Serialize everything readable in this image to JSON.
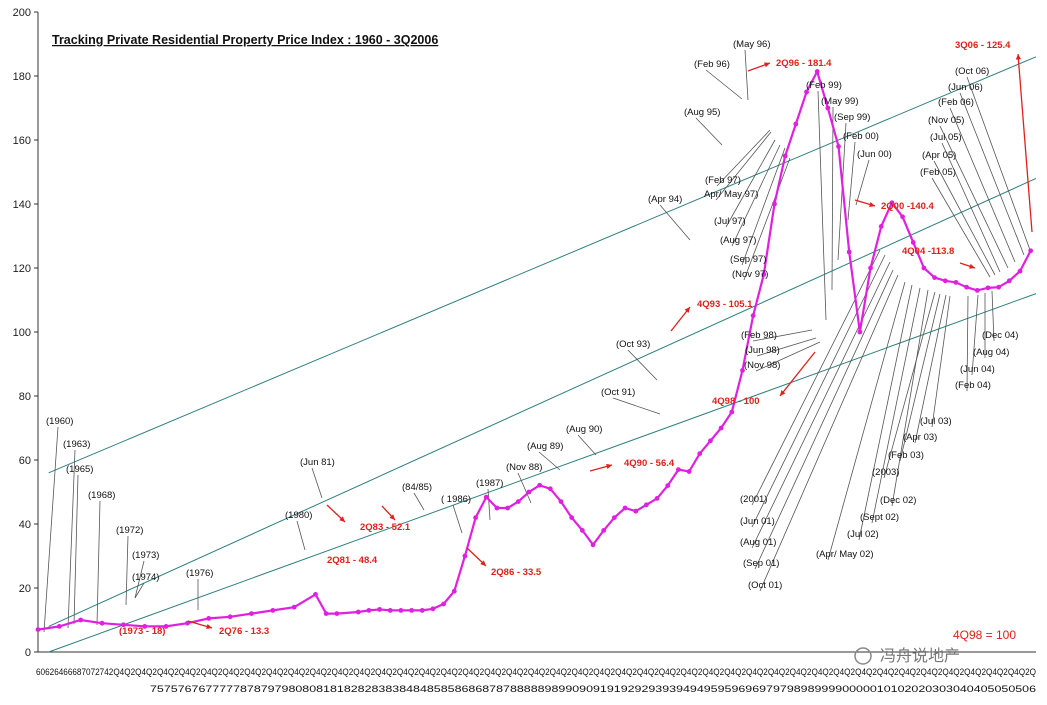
{
  "chart_data": {
    "type": "line",
    "title": "Tracking Private Residential Property Price Index : 1960 - 3Q2006",
    "ylim": [
      0,
      200
    ],
    "yticks": [
      0,
      20,
      40,
      60,
      80,
      100,
      120,
      140,
      160,
      180,
      200
    ],
    "xlabel": "",
    "ylabel": "",
    "grid": false,
    "base_note": "4Q98 = 100",
    "x_label_row1": "60626466687072742Q4Q2Q4Q2Q4Q2Q4Q2Q4Q2Q4Q2Q4Q2Q4Q2Q4Q2Q4Q2Q4Q2Q4Q2Q4Q2Q4Q2Q4Q2Q4Q2Q4Q2Q4Q2Q4Q2Q4Q2Q4Q2Q4Q2Q4Q2Q4Q2Q4Q2Q4Q2Q4Q2Q4Q2Q4Q2Q4Q2Q4Q2Q4Q2Q4Q2Q4Q2Q4Q2Q4Q2Q4Q2Q4Q2Q4Q2Q4Q2Q4Q2Q4Q2Q",
    "x_label_row2": "75757676777778787979808081818282838384848585868687878888898990909191929293939494959596969797989899990000010102020303040405050506",
    "x_range": [
      1960,
      2006.75
    ],
    "series": [
      {
        "color": "#e020e0",
        "x": [
          1960,
          1961,
          1962,
          1963,
          1964,
          1965,
          1966,
          1967,
          1968,
          1969,
          1970,
          1971,
          1972,
          1973,
          1973.5,
          1974,
          1975,
          1975.5,
          1976,
          1976.5,
          1977,
          1977.5,
          1978,
          1978.5,
          1979,
          1979.5,
          1980,
          1980.5,
          1981,
          1981.5,
          1982,
          1982.5,
          1983,
          1983.5,
          1984,
          1984.5,
          1985,
          1985.5,
          1986,
          1986.5,
          1987,
          1987.5,
          1988,
          1988.5,
          1989,
          1989.5,
          1990,
          1990.5,
          1991,
          1991.5,
          1992,
          1992.5,
          1993,
          1993.5,
          1994,
          1994.5,
          1995,
          1995.5,
          1996,
          1996.5,
          1997,
          1997.5,
          1998,
          1998.5,
          1999,
          1999.5,
          2000,
          2000.5,
          2001,
          2001.5,
          2002,
          2002.5,
          2003,
          2003.5,
          2004,
          2004.5,
          2005,
          2005.5,
          2006,
          2006.5
        ],
        "values": [
          7,
          8,
          10,
          9,
          8.5,
          8,
          8,
          9,
          10.5,
          11,
          12,
          13,
          14,
          18,
          12,
          12,
          12.5,
          13,
          13.3,
          13,
          13,
          13,
          13,
          13.5,
          15,
          19,
          30,
          42,
          48.4,
          45,
          45,
          47,
          50,
          52.1,
          51,
          47,
          42,
          38,
          33.5,
          38,
          42,
          45,
          44,
          46,
          48,
          52,
          57,
          56.4,
          62,
          66,
          70,
          75,
          88,
          105.1,
          118,
          140,
          155,
          165,
          175,
          181.4,
          170,
          158,
          125,
          100,
          120,
          133,
          140.4,
          136,
          128,
          120,
          117,
          116,
          115.5,
          114,
          113,
          113.8,
          114,
          116,
          119,
          125.4
        ]
      }
    ],
    "trend_lines_note": "three parallel trend channel lines",
    "annotations_black": [
      "(1960)",
      "(1963)",
      "(1965)",
      "(1968)",
      "(1972)",
      "(1973)",
      "(1974)",
      "(1976)",
      "(1980)",
      "(Jun 81)",
      "(84/85)",
      "( 1986)",
      "(1987)",
      "(Nov 88)",
      "(Aug 89)",
      "(Aug 90)",
      "(Oct 91)",
      "(Oct 93)",
      "(Apr 94)",
      "(Aug 95)",
      "(Feb 96)",
      "(May 96)",
      "(Feb 97)",
      "Apr/ May 97)",
      "(Jul 97)",
      "(Aug 97)",
      "(Sep 97)",
      "(Nov 97)",
      "(Feb 98)",
      "(Jun 98)",
      "(Nov 98)",
      "(Feb 99)",
      "(May 99)",
      "(Sep 99)",
      "(Feb 00)",
      "(Jun 00)",
      "(2001)",
      "(Jun 01)",
      "(Aug 01)",
      "(Sep 01)",
      "(Oct 01)",
      "(Apr/ May 02)",
      "(Jul 02)",
      "(Sept 02)",
      "(Dec 02)",
      "(2003)",
      "(Feb 03)",
      "(Apr 03)",
      "(Jul 03)",
      "(Feb 04)",
      "(Jun 04)",
      "(Aug 04)",
      "(Dec 04)",
      "(Oct 06)",
      "(Jun 06)",
      "(Feb 06)",
      "(Nov 05)",
      "(Jul 05)",
      "(Apr 05)",
      "(Feb 05)"
    ],
    "annotations_red": [
      "(1973 - 18)",
      "2Q76 - 13.3",
      "2Q81 - 48.4",
      "2Q83 - 52.1",
      "2Q86 - 33.5",
      "4Q90 - 56.4",
      "4Q93 - 105.1",
      "2Q96 - 181.4",
      "4Q98 - 100",
      "2Q00 -140.4",
      "4Q04 -113.8",
      "3Q06 - 125.4"
    ]
  },
  "watermark": "冯舟说地产"
}
